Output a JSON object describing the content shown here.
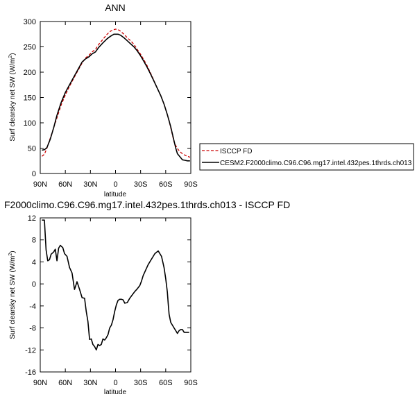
{
  "chart_data": [
    {
      "type": "line",
      "title": "ANN",
      "xlabel": "latitude",
      "ylabel": "Surf clearsky net SW (W/m²)",
      "ylabel_main": "Surf clearsky net SW (W/m",
      "ylabel_sup": "2",
      "ylabel_close": ")",
      "xlim": [
        -90,
        90
      ],
      "ylim": [
        0,
        300
      ],
      "xticks": [
        -90,
        -60,
        -30,
        0,
        30,
        60,
        90
      ],
      "xticklabels": [
        "90N",
        "60N",
        "30N",
        "0",
        "30S",
        "60S",
        "90S"
      ],
      "yticks": [
        0,
        50,
        100,
        150,
        200,
        250,
        300
      ],
      "yticklabels": [
        "0",
        "50",
        "100",
        "150",
        "200",
        "250",
        "300"
      ],
      "x": [
        -88,
        -85,
        -82,
        -78,
        -74,
        -70,
        -65,
        -60,
        -55,
        -50,
        -45,
        -40,
        -36,
        -32,
        -28,
        -24,
        -20,
        -15,
        -10,
        -6,
        -2,
        0,
        3,
        6,
        10,
        14,
        18,
        22,
        26,
        30,
        34,
        38,
        42,
        46,
        50,
        54,
        58,
        62,
        64,
        66,
        68,
        70,
        72,
        74,
        77,
        80,
        83,
        86,
        89
      ],
      "series": [
        {
          "name": "ISCCP FD",
          "color": "#cc0000",
          "style": "dashed",
          "values": [
            34,
            38,
            50,
            70,
            90,
            110,
            135,
            155,
            172,
            188,
            203,
            218,
            228,
            233,
            240,
            245,
            255,
            265,
            275,
            281,
            284,
            285,
            284,
            281,
            275,
            268,
            262,
            255,
            245,
            235,
            224,
            212,
            198,
            183,
            168,
            154,
            137,
            116,
            104,
            90,
            76,
            62,
            55,
            49,
            43,
            39,
            36,
            34,
            32
          ]
        },
        {
          "name": "CESM2.F2000climo.C96.C96.mg17.intel.432pes.1thrds.ch013",
          "color": "#000000",
          "style": "solid",
          "values": [
            46,
            47,
            51,
            68,
            90,
            115,
            140,
            160,
            175,
            190,
            205,
            220,
            226,
            230,
            236,
            240,
            249,
            258,
            266,
            271,
            275,
            275,
            275,
            273,
            268,
            262,
            256,
            250,
            242,
            232,
            221,
            209,
            196,
            182,
            168,
            154,
            137,
            116,
            104,
            92,
            78,
            64,
            50,
            39,
            33,
            27,
            26,
            25,
            25
          ]
        }
      ],
      "legend": "right"
    },
    {
      "type": "line",
      "title": "F2000climo.C96.C96.mg17.intel.432pes.1thrds.ch013 - ISCCP FD",
      "xlabel": "latitude",
      "ylabel": "Surf clearsky net SW (W/m²)",
      "ylabel_main": "Surf clearsky net SW (W/m",
      "ylabel_sup": "2",
      "ylabel_close": ")",
      "xlim": [
        -90,
        90
      ],
      "ylim": [
        -16,
        12
      ],
      "xticks": [
        -90,
        -60,
        -30,
        0,
        30,
        60,
        90
      ],
      "xticklabels": [
        "90N",
        "60N",
        "30N",
        "0",
        "30S",
        "60S",
        "90S"
      ],
      "yticks": [
        -16,
        -12,
        -8,
        -4,
        0,
        4,
        8,
        12
      ],
      "yticklabels": [
        "-16",
        "-12",
        "-8",
        "-4",
        "0",
        "4",
        "8",
        "12"
      ],
      "x": [
        -88,
        -85,
        -83,
        -81,
        -79,
        -77,
        -74,
        -72,
        -70,
        -68,
        -66,
        -63,
        -61,
        -58,
        -55,
        -52,
        -49,
        -46,
        -43,
        -40,
        -37,
        -35,
        -33,
        -31,
        -29,
        -27,
        -25,
        -23,
        -21,
        -19,
        -17,
        -15,
        -13,
        -11,
        -9,
        -7,
        -5,
        -3,
        -1,
        1,
        3,
        5,
        7,
        9,
        11,
        14,
        17,
        20,
        23,
        26,
        29,
        31,
        33,
        36,
        39,
        43,
        47,
        51,
        55,
        58,
        60,
        62,
        63,
        64,
        66,
        68,
        70,
        72,
        74,
        76,
        78,
        80,
        82,
        84,
        86,
        88
      ],
      "series": [
        {
          "name": "CESM2.F2000climo.C96.C96.mg17.intel.432pes.1thrds.ch013 - ISCCP FD",
          "color": "#000000",
          "style": "solid",
          "values": [
            11.6,
            11.6,
            6.2,
            4.2,
            4.4,
            5.4,
            5.8,
            6.3,
            4.2,
            6.5,
            7.0,
            6.6,
            5.5,
            5.0,
            3.0,
            2.0,
            -1.0,
            0.4,
            -1.0,
            -2.5,
            -2.6,
            -5.0,
            -6.8,
            -10.1,
            -10.0,
            -11.0,
            -11.4,
            -12.0,
            -11.0,
            -11.2,
            -11.0,
            -10.0,
            -10.2,
            -9.8,
            -9.2,
            -8.0,
            -7.5,
            -6.5,
            -5.0,
            -3.8,
            -3.0,
            -2.8,
            -2.8,
            -2.9,
            -3.5,
            -3.4,
            -2.6,
            -2.0,
            -1.4,
            -0.9,
            -0.3,
            0.5,
            1.5,
            2.5,
            3.5,
            4.5,
            5.5,
            6.0,
            5.0,
            3.0,
            1.0,
            -1.5,
            -3.5,
            -5.5,
            -7.0,
            -7.5,
            -8.0,
            -8.5,
            -9.0,
            -8.5,
            -8.3,
            -8.3,
            -8.8,
            -8.8,
            -8.8,
            -8.8
          ]
        }
      ],
      "legend": "none"
    }
  ]
}
